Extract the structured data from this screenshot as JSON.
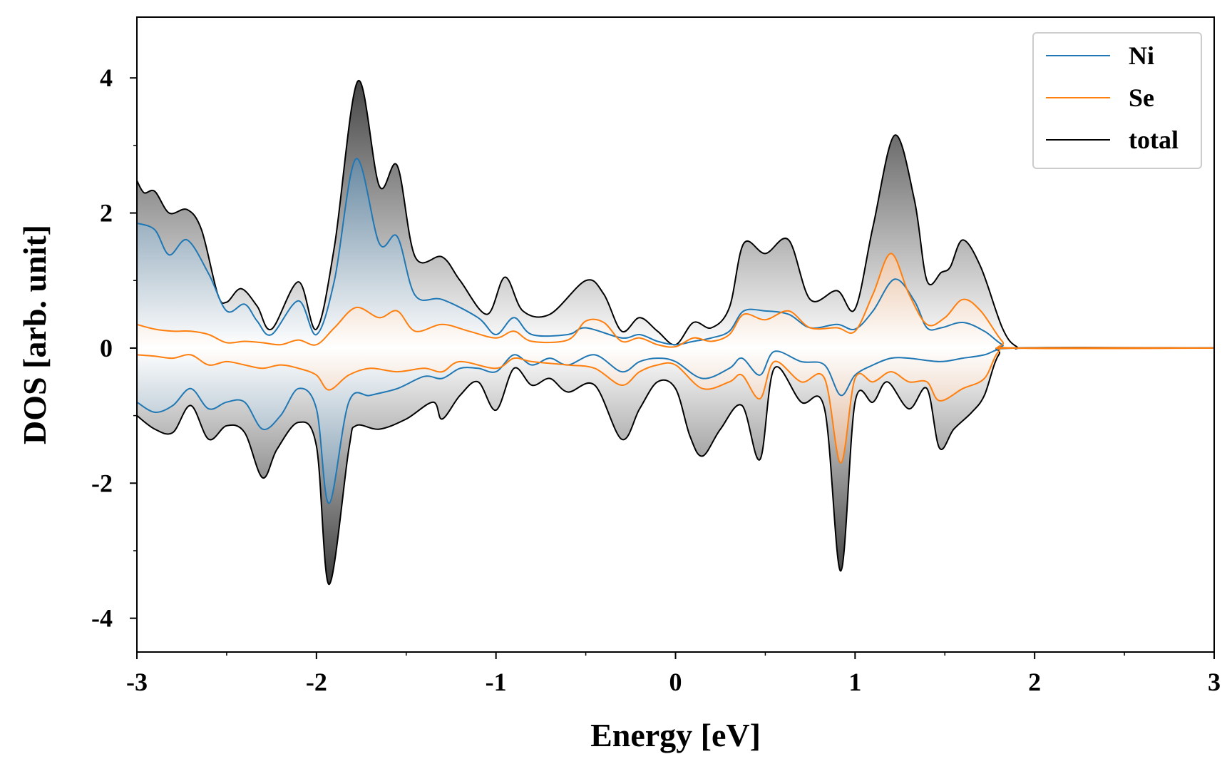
{
  "chart_data": {
    "type": "area",
    "title": "",
    "xlabel": "Energy [eV]",
    "ylabel": "DOS [arb. unit]",
    "xlim": [
      -3,
      3
    ],
    "ylim": [
      -4.5,
      4.9
    ],
    "x_ticks": [
      -3,
      -2,
      -1,
      0,
      1,
      2,
      3
    ],
    "x_tick_labels": [
      "-3",
      "-2",
      "-1",
      "0",
      "1",
      "2",
      "3"
    ],
    "y_ticks": [
      -4,
      -2,
      0,
      2,
      4
    ],
    "y_tick_labels": [
      "-4",
      "-2",
      "0",
      "2",
      "4"
    ],
    "grid": false,
    "legend_position": "top-right",
    "colors": {
      "Ni": "#1f77b4",
      "Se": "#ff7f0e",
      "total": "#000000"
    },
    "series": [
      {
        "name": "total",
        "role": "spin-up",
        "points": [
          [
            -3,
            2.48
          ],
          [
            -2.96,
            2.3
          ],
          [
            -2.9,
            2.32
          ],
          [
            -2.82,
            2.0
          ],
          [
            -2.72,
            2.05
          ],
          [
            -2.64,
            1.75
          ],
          [
            -2.55,
            0.8
          ],
          [
            -2.5,
            0.68
          ],
          [
            -2.42,
            0.88
          ],
          [
            -2.33,
            0.62
          ],
          [
            -2.25,
            0.28
          ],
          [
            -2.1,
            0.98
          ],
          [
            -2.0,
            0.28
          ],
          [
            -1.9,
            1.5
          ],
          [
            -1.77,
            3.95
          ],
          [
            -1.65,
            2.4
          ],
          [
            -1.55,
            2.7
          ],
          [
            -1.45,
            1.35
          ],
          [
            -1.3,
            1.35
          ],
          [
            -1.2,
            1.0
          ],
          [
            -1.05,
            0.5
          ],
          [
            -0.95,
            1.05
          ],
          [
            -0.85,
            0.55
          ],
          [
            -0.7,
            0.5
          ],
          [
            -0.5,
            1.0
          ],
          [
            -0.4,
            0.8
          ],
          [
            -0.3,
            0.25
          ],
          [
            -0.2,
            0.45
          ],
          [
            -0.1,
            0.25
          ],
          [
            0,
            0.05
          ],
          [
            0.1,
            0.38
          ],
          [
            0.2,
            0.3
          ],
          [
            0.3,
            0.6
          ],
          [
            0.38,
            1.55
          ],
          [
            0.5,
            1.4
          ],
          [
            0.63,
            1.6
          ],
          [
            0.75,
            0.72
          ],
          [
            0.9,
            0.85
          ],
          [
            1.0,
            0.58
          ],
          [
            1.1,
            1.8
          ],
          [
            1.22,
            3.15
          ],
          [
            1.33,
            2.2
          ],
          [
            1.4,
            1.0
          ],
          [
            1.48,
            1.12
          ],
          [
            1.53,
            1.2
          ],
          [
            1.6,
            1.6
          ],
          [
            1.7,
            1.2
          ],
          [
            1.82,
            0.3
          ],
          [
            1.9,
            0.02
          ],
          [
            2.0,
            0
          ],
          [
            3,
            0
          ]
        ]
      },
      {
        "name": "total",
        "role": "spin-down",
        "points": [
          [
            -3,
            -1.0
          ],
          [
            -2.9,
            -1.2
          ],
          [
            -2.8,
            -1.25
          ],
          [
            -2.7,
            -0.85
          ],
          [
            -2.6,
            -1.35
          ],
          [
            -2.5,
            -1.15
          ],
          [
            -2.4,
            -1.25
          ],
          [
            -2.3,
            -1.92
          ],
          [
            -2.22,
            -1.5
          ],
          [
            -2.1,
            -1.1
          ],
          [
            -2.0,
            -1.45
          ],
          [
            -1.93,
            -3.5
          ],
          [
            -1.82,
            -1.5
          ],
          [
            -1.78,
            -1.15
          ],
          [
            -1.65,
            -1.2
          ],
          [
            -1.5,
            -1.05
          ],
          [
            -1.35,
            -0.8
          ],
          [
            -1.3,
            -1.05
          ],
          [
            -1.2,
            -0.7
          ],
          [
            -1.1,
            -0.5
          ],
          [
            -1.0,
            -0.92
          ],
          [
            -0.9,
            -0.3
          ],
          [
            -0.8,
            -0.55
          ],
          [
            -0.7,
            -0.45
          ],
          [
            -0.6,
            -0.65
          ],
          [
            -0.45,
            -0.55
          ],
          [
            -0.3,
            -1.35
          ],
          [
            -0.2,
            -0.9
          ],
          [
            -0.1,
            -0.5
          ],
          [
            0,
            -0.6
          ],
          [
            0.08,
            -1.3
          ],
          [
            0.15,
            -1.6
          ],
          [
            0.25,
            -1.2
          ],
          [
            0.37,
            -0.85
          ],
          [
            0.47,
            -1.65
          ],
          [
            0.55,
            -0.3
          ],
          [
            0.7,
            -0.8
          ],
          [
            0.83,
            -0.9
          ],
          [
            0.92,
            -3.3
          ],
          [
            1.0,
            -0.8
          ],
          [
            1.1,
            -0.8
          ],
          [
            1.18,
            -0.5
          ],
          [
            1.3,
            -0.9
          ],
          [
            1.4,
            -0.6
          ],
          [
            1.47,
            -1.48
          ],
          [
            1.55,
            -1.2
          ],
          [
            1.65,
            -0.95
          ],
          [
            1.72,
            -0.7
          ],
          [
            1.8,
            -0.1
          ],
          [
            1.9,
            0
          ],
          [
            3,
            0
          ]
        ]
      },
      {
        "name": "Ni",
        "role": "spin-up",
        "points": [
          [
            -3,
            1.85
          ],
          [
            -2.9,
            1.75
          ],
          [
            -2.82,
            1.38
          ],
          [
            -2.72,
            1.6
          ],
          [
            -2.6,
            1.1
          ],
          [
            -2.5,
            0.55
          ],
          [
            -2.4,
            0.65
          ],
          [
            -2.33,
            0.4
          ],
          [
            -2.25,
            0.2
          ],
          [
            -2.1,
            0.7
          ],
          [
            -2.0,
            0.2
          ],
          [
            -1.9,
            1.0
          ],
          [
            -1.78,
            2.8
          ],
          [
            -1.65,
            1.55
          ],
          [
            -1.55,
            1.65
          ],
          [
            -1.45,
            0.78
          ],
          [
            -1.3,
            0.72
          ],
          [
            -1.1,
            0.45
          ],
          [
            -1.0,
            0.2
          ],
          [
            -0.9,
            0.45
          ],
          [
            -0.8,
            0.2
          ],
          [
            -0.6,
            0.2
          ],
          [
            -0.5,
            0.3
          ],
          [
            -0.3,
            0.15
          ],
          [
            -0.2,
            0.2
          ],
          [
            -0.1,
            0.1
          ],
          [
            0,
            0.05
          ],
          [
            0.1,
            0.1
          ],
          [
            0.2,
            0.15
          ],
          [
            0.3,
            0.25
          ],
          [
            0.38,
            0.55
          ],
          [
            0.5,
            0.55
          ],
          [
            0.63,
            0.5
          ],
          [
            0.75,
            0.3
          ],
          [
            0.9,
            0.35
          ],
          [
            1.0,
            0.28
          ],
          [
            1.1,
            0.55
          ],
          [
            1.22,
            1.02
          ],
          [
            1.33,
            0.7
          ],
          [
            1.4,
            0.3
          ],
          [
            1.48,
            0.3
          ],
          [
            1.6,
            0.38
          ],
          [
            1.72,
            0.25
          ],
          [
            1.82,
            0.05
          ],
          [
            1.9,
            0
          ],
          [
            3,
            0
          ]
        ]
      },
      {
        "name": "Ni",
        "role": "spin-down",
        "points": [
          [
            -3,
            -0.8
          ],
          [
            -2.9,
            -0.95
          ],
          [
            -2.8,
            -0.85
          ],
          [
            -2.7,
            -0.6
          ],
          [
            -2.6,
            -0.9
          ],
          [
            -2.5,
            -0.8
          ],
          [
            -2.4,
            -0.8
          ],
          [
            -2.3,
            -1.2
          ],
          [
            -2.2,
            -1.0
          ],
          [
            -2.1,
            -0.6
          ],
          [
            -2.0,
            -0.9
          ],
          [
            -1.93,
            -2.3
          ],
          [
            -1.82,
            -0.8
          ],
          [
            -1.7,
            -0.7
          ],
          [
            -1.55,
            -0.6
          ],
          [
            -1.4,
            -0.42
          ],
          [
            -1.3,
            -0.45
          ],
          [
            -1.2,
            -0.3
          ],
          [
            -1.1,
            -0.3
          ],
          [
            -1.0,
            -0.35
          ],
          [
            -0.9,
            -0.1
          ],
          [
            -0.8,
            -0.25
          ],
          [
            -0.7,
            -0.15
          ],
          [
            -0.6,
            -0.25
          ],
          [
            -0.45,
            -0.1
          ],
          [
            -0.3,
            -0.35
          ],
          [
            -0.2,
            -0.2
          ],
          [
            -0.1,
            -0.15
          ],
          [
            0,
            -0.2
          ],
          [
            0.15,
            -0.45
          ],
          [
            0.3,
            -0.3
          ],
          [
            0.37,
            -0.15
          ],
          [
            0.47,
            -0.4
          ],
          [
            0.55,
            -0.05
          ],
          [
            0.7,
            -0.2
          ],
          [
            0.83,
            -0.25
          ],
          [
            0.92,
            -0.7
          ],
          [
            1.0,
            -0.4
          ],
          [
            1.1,
            -0.25
          ],
          [
            1.2,
            -0.15
          ],
          [
            1.3,
            -0.15
          ],
          [
            1.47,
            -0.2
          ],
          [
            1.6,
            -0.15
          ],
          [
            1.72,
            -0.1
          ],
          [
            1.8,
            -0.02
          ],
          [
            1.9,
            0
          ],
          [
            3,
            0
          ]
        ]
      },
      {
        "name": "Se",
        "role": "spin-up",
        "points": [
          [
            -3,
            0.35
          ],
          [
            -2.9,
            0.28
          ],
          [
            -2.8,
            0.25
          ],
          [
            -2.7,
            0.25
          ],
          [
            -2.6,
            0.2
          ],
          [
            -2.5,
            0.08
          ],
          [
            -2.4,
            0.1
          ],
          [
            -2.3,
            0.08
          ],
          [
            -2.2,
            0.05
          ],
          [
            -2.1,
            0.12
          ],
          [
            -2.0,
            0.05
          ],
          [
            -1.9,
            0.3
          ],
          [
            -1.78,
            0.6
          ],
          [
            -1.65,
            0.45
          ],
          [
            -1.55,
            0.55
          ],
          [
            -1.45,
            0.25
          ],
          [
            -1.3,
            0.35
          ],
          [
            -1.15,
            0.25
          ],
          [
            -1.0,
            0.15
          ],
          [
            -0.9,
            0.25
          ],
          [
            -0.8,
            0.1
          ],
          [
            -0.6,
            0.12
          ],
          [
            -0.5,
            0.4
          ],
          [
            -0.4,
            0.38
          ],
          [
            -0.3,
            0.1
          ],
          [
            -0.2,
            0.15
          ],
          [
            -0.1,
            0.05
          ],
          [
            0,
            0.02
          ],
          [
            0.1,
            0.15
          ],
          [
            0.2,
            0.1
          ],
          [
            0.3,
            0.2
          ],
          [
            0.38,
            0.5
          ],
          [
            0.5,
            0.42
          ],
          [
            0.63,
            0.55
          ],
          [
            0.75,
            0.3
          ],
          [
            0.9,
            0.3
          ],
          [
            1.0,
            0.25
          ],
          [
            1.1,
            0.8
          ],
          [
            1.2,
            1.4
          ],
          [
            1.3,
            0.8
          ],
          [
            1.4,
            0.35
          ],
          [
            1.5,
            0.45
          ],
          [
            1.6,
            0.72
          ],
          [
            1.7,
            0.55
          ],
          [
            1.82,
            0.1
          ],
          [
            1.9,
            0
          ],
          [
            3,
            0
          ]
        ]
      },
      {
        "name": "Se",
        "role": "spin-down",
        "points": [
          [
            -3,
            -0.1
          ],
          [
            -2.9,
            -0.12
          ],
          [
            -2.8,
            -0.15
          ],
          [
            -2.7,
            -0.1
          ],
          [
            -2.6,
            -0.25
          ],
          [
            -2.5,
            -0.2
          ],
          [
            -2.4,
            -0.25
          ],
          [
            -2.3,
            -0.3
          ],
          [
            -2.2,
            -0.25
          ],
          [
            -2.1,
            -0.3
          ],
          [
            -2.0,
            -0.4
          ],
          [
            -1.93,
            -0.62
          ],
          [
            -1.82,
            -0.4
          ],
          [
            -1.7,
            -0.3
          ],
          [
            -1.55,
            -0.35
          ],
          [
            -1.4,
            -0.3
          ],
          [
            -1.3,
            -0.35
          ],
          [
            -1.2,
            -0.2
          ],
          [
            -1.0,
            -0.3
          ],
          [
            -0.9,
            -0.15
          ],
          [
            -0.8,
            -0.2
          ],
          [
            -0.6,
            -0.25
          ],
          [
            -0.45,
            -0.3
          ],
          [
            -0.3,
            -0.55
          ],
          [
            -0.2,
            -0.35
          ],
          [
            -0.1,
            -0.25
          ],
          [
            0,
            -0.25
          ],
          [
            0.15,
            -0.6
          ],
          [
            0.3,
            -0.5
          ],
          [
            0.37,
            -0.4
          ],
          [
            0.47,
            -0.75
          ],
          [
            0.55,
            -0.2
          ],
          [
            0.7,
            -0.5
          ],
          [
            0.83,
            -0.45
          ],
          [
            0.92,
            -1.7
          ],
          [
            1.0,
            -0.45
          ],
          [
            1.1,
            -0.5
          ],
          [
            1.2,
            -0.35
          ],
          [
            1.3,
            -0.5
          ],
          [
            1.4,
            -0.5
          ],
          [
            1.47,
            -0.78
          ],
          [
            1.6,
            -0.6
          ],
          [
            1.72,
            -0.45
          ],
          [
            1.8,
            -0.05
          ],
          [
            1.9,
            0
          ],
          [
            3,
            0
          ]
        ]
      }
    ]
  }
}
